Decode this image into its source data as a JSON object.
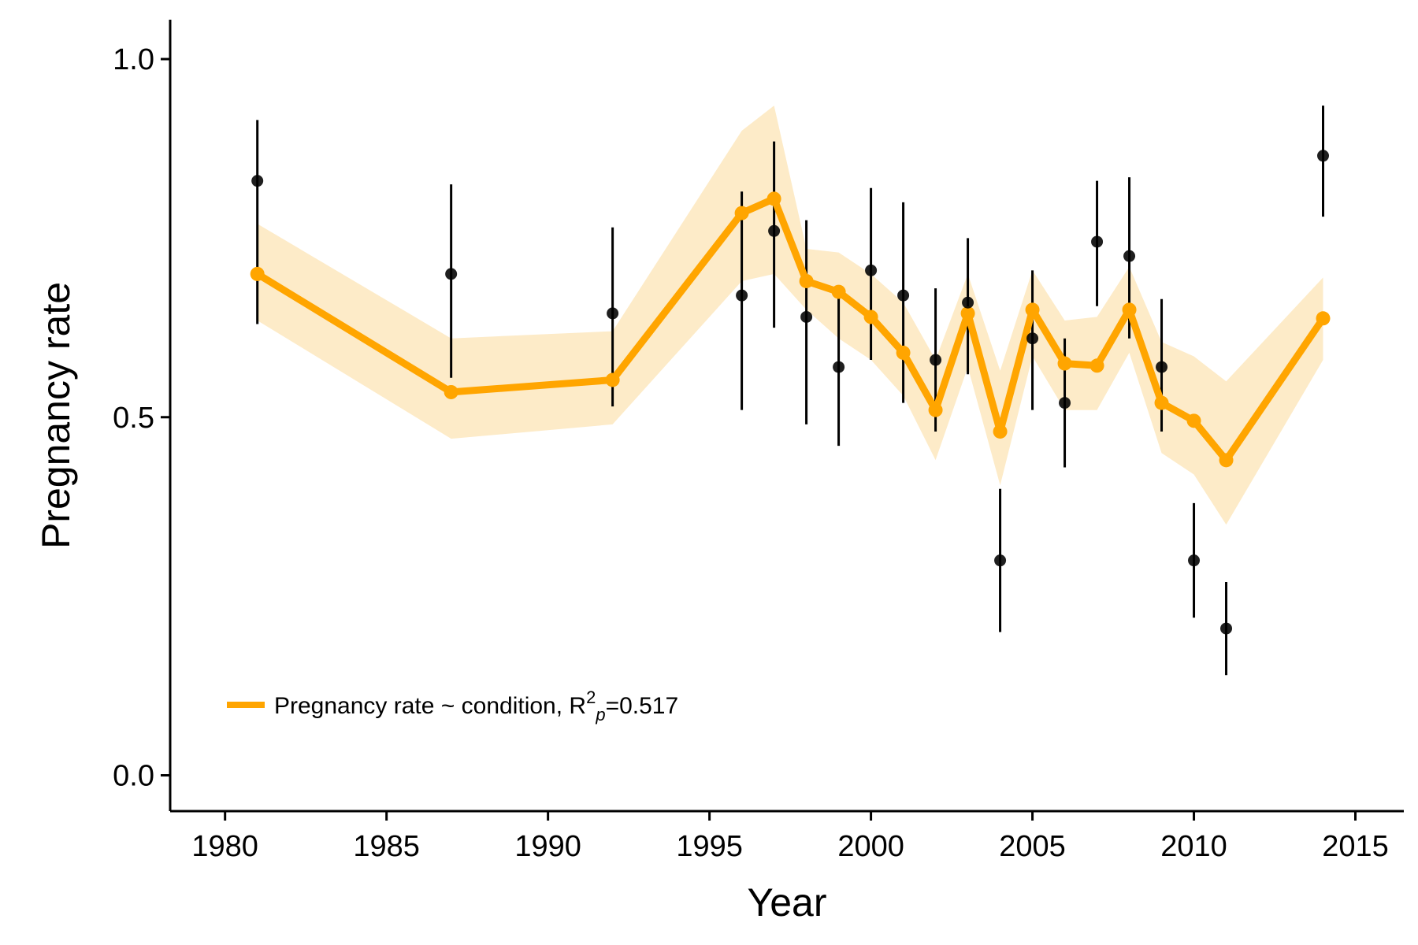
{
  "chart_data": {
    "type": "line",
    "xlabel": "Year",
    "ylabel": "Pregnancy rate",
    "xlim": [
      1978.3,
      2016.5
    ],
    "ylim": [
      -0.05,
      1.055
    ],
    "xticks": [
      {
        "value": 1980,
        "label": "1980"
      },
      {
        "value": 1985,
        "label": "1985"
      },
      {
        "value": 1990,
        "label": "1990"
      },
      {
        "value": 1995,
        "label": "1995"
      },
      {
        "value": 2000,
        "label": "2000"
      },
      {
        "value": 2005,
        "label": "2005"
      },
      {
        "value": 2010,
        "label": "2010"
      },
      {
        "value": 2015,
        "label": "2015"
      }
    ],
    "yticks": [
      {
        "value": 0.0,
        "label": "0.0"
      },
      {
        "value": 0.5,
        "label": "0.5"
      },
      {
        "value": 1.0,
        "label": "1.0"
      }
    ],
    "grid": false,
    "legend_position": "bottom-left",
    "colors": {
      "line": "#FFA500",
      "band": "#FDEBC8",
      "observed": "#000000"
    },
    "legend": {
      "text": "Pregnancy rate ~ condition, R",
      "superscript": "2",
      "subscript": "p",
      "value_text": "=0.517"
    },
    "observed": {
      "x": [
        1981,
        1987,
        1992,
        1996,
        1997,
        1998,
        1999,
        2000,
        2001,
        2002,
        2003,
        2004,
        2005,
        2006,
        2007,
        2008,
        2009,
        2010,
        2011,
        2014
      ],
      "y": [
        0.83,
        0.7,
        0.645,
        0.67,
        0.76,
        0.64,
        0.57,
        0.705,
        0.67,
        0.58,
        0.66,
        0.3,
        0.61,
        0.52,
        0.745,
        0.725,
        0.57,
        0.3,
        0.205,
        0.865
      ],
      "lower": [
        0.63,
        0.555,
        0.515,
        0.51,
        0.625,
        0.49,
        0.46,
        0.58,
        0.52,
        0.48,
        0.56,
        0.2,
        0.51,
        0.43,
        0.655,
        0.61,
        0.48,
        0.22,
        0.14,
        0.78
      ],
      "upper": [
        0.915,
        0.825,
        0.765,
        0.815,
        0.885,
        0.775,
        0.67,
        0.82,
        0.8,
        0.68,
        0.75,
        0.4,
        0.705,
        0.61,
        0.83,
        0.835,
        0.665,
        0.38,
        0.27,
        0.935
      ]
    },
    "fitted": {
      "x": [
        1981,
        1987,
        1992,
        1996,
        1997,
        1998,
        1999,
        2000,
        2001,
        2002,
        2003,
        2004,
        2005,
        2006,
        2007,
        2008,
        2009,
        2010,
        2011,
        2014
      ],
      "y": [
        0.7,
        0.535,
        0.552,
        0.785,
        0.805,
        0.69,
        0.675,
        0.64,
        0.59,
        0.51,
        0.645,
        0.48,
        0.65,
        0.575,
        0.572,
        0.65,
        0.52,
        0.495,
        0.44,
        0.638
      ],
      "lower": [
        0.635,
        0.47,
        0.49,
        0.69,
        0.7,
        0.65,
        0.61,
        0.58,
        0.53,
        0.44,
        0.57,
        0.405,
        0.585,
        0.51,
        0.51,
        0.59,
        0.45,
        0.42,
        0.35,
        0.58
      ],
      "upper": [
        0.77,
        0.61,
        0.62,
        0.9,
        0.935,
        0.735,
        0.73,
        0.7,
        0.66,
        0.58,
        0.7,
        0.565,
        0.705,
        0.635,
        0.64,
        0.71,
        0.605,
        0.585,
        0.55,
        0.695
      ]
    }
  }
}
